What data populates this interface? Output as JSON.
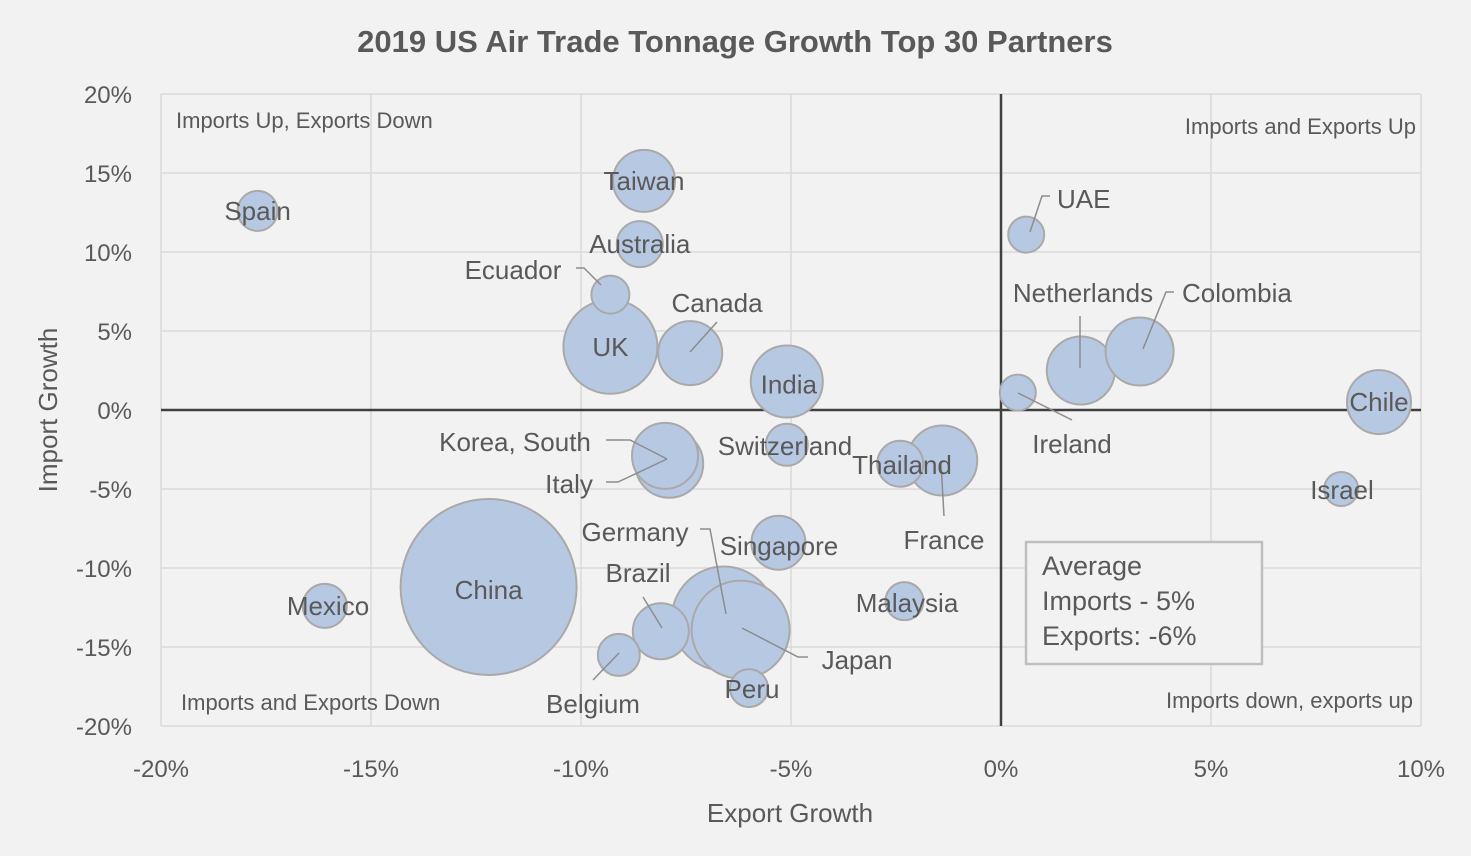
{
  "chart_data": {
    "type": "bubble",
    "title": "2019 US Air Trade Tonnage Growth Top 30 Partners",
    "xlabel": "Export Growth",
    "ylabel": "Import Growth",
    "xlim": [
      -0.2,
      0.1
    ],
    "ylim": [
      -0.2,
      0.2
    ],
    "x_ticks": [
      -0.2,
      -0.15,
      -0.1,
      -0.05,
      0,
      0.05,
      0.1
    ],
    "x_tick_labels": [
      "-20%",
      "-15%",
      "-10%",
      "-5%",
      "0%",
      "5%",
      "10%"
    ],
    "y_ticks": [
      0.2,
      0.15,
      0.1,
      0.05,
      0,
      -0.05,
      -0.1,
      -0.15,
      -0.2
    ],
    "y_tick_labels": [
      "20%",
      "15%",
      "10%",
      "5%",
      "0%",
      "-5%",
      "-10%",
      "-15%",
      "-20%"
    ],
    "grid": true,
    "quadrant_labels": {
      "top_left": "Imports Up, Exports Down",
      "top_right": "Imports and Exports Up",
      "bottom_left": "Imports and Exports Down",
      "bottom_right": "Imports down, exports up"
    },
    "average_box": {
      "line1": "Average",
      "line2": "Imports - 5%",
      "line3": "Exports: -6%"
    },
    "points": [
      {
        "label": "Spain",
        "x": -0.177,
        "y": 0.126,
        "size": 20
      },
      {
        "label": "Taiwan",
        "x": -0.085,
        "y": 0.145,
        "size": 31
      },
      {
        "label": "Australia",
        "x": -0.086,
        "y": 0.105,
        "size": 23
      },
      {
        "label": "Ecuador",
        "x": -0.093,
        "y": 0.073,
        "size": 19
      },
      {
        "label": "UK",
        "x": -0.093,
        "y": 0.04,
        "size": 47
      },
      {
        "label": "Canada",
        "x": -0.074,
        "y": 0.036,
        "size": 32
      },
      {
        "label": "India",
        "x": -0.051,
        "y": 0.018,
        "size": 36
      },
      {
        "label": "UAE",
        "x": 0.006,
        "y": 0.111,
        "size": 18
      },
      {
        "label": "Netherlands",
        "x": 0.019,
        "y": 0.025,
        "size": 34
      },
      {
        "label": "Colombia",
        "x": 0.033,
        "y": 0.037,
        "size": 34
      },
      {
        "label": "Ireland",
        "x": 0.004,
        "y": 0.011,
        "size": 18
      },
      {
        "label": "Chile",
        "x": 0.09,
        "y": 0.005,
        "size": 32
      },
      {
        "label": "Korea, South",
        "x": -0.08,
        "y": -0.029,
        "size": 33
      },
      {
        "label": "Italy",
        "x": -0.079,
        "y": -0.034,
        "size": 34
      },
      {
        "label": "Switzerland",
        "x": -0.051,
        "y": -0.022,
        "size": 21
      },
      {
        "label": "Thailand",
        "x": -0.024,
        "y": -0.034,
        "size": 23
      },
      {
        "label": "France",
        "x": -0.014,
        "y": -0.032,
        "size": 35
      },
      {
        "label": "Israel",
        "x": 0.081,
        "y": -0.05,
        "size": 17
      },
      {
        "label": "Singapore",
        "x": -0.053,
        "y": -0.084,
        "size": 27
      },
      {
        "label": "China",
        "x": -0.122,
        "y": -0.112,
        "size": 88
      },
      {
        "label": "Mexico",
        "x": -0.161,
        "y": -0.124,
        "size": 22
      },
      {
        "label": "Brazil",
        "x": -0.081,
        "y": -0.14,
        "size": 28
      },
      {
        "label": "Germany",
        "x": -0.066,
        "y": -0.132,
        "size": 52
      },
      {
        "label": "Japan",
        "x": -0.062,
        "y": -0.139,
        "size": 49
      },
      {
        "label": "Belgium",
        "x": -0.091,
        "y": -0.155,
        "size": 21
      },
      {
        "label": "Peru",
        "x": -0.06,
        "y": -0.176,
        "size": 19
      },
      {
        "label": "Malaysia",
        "x": -0.023,
        "y": -0.121,
        "size": 19
      }
    ]
  }
}
